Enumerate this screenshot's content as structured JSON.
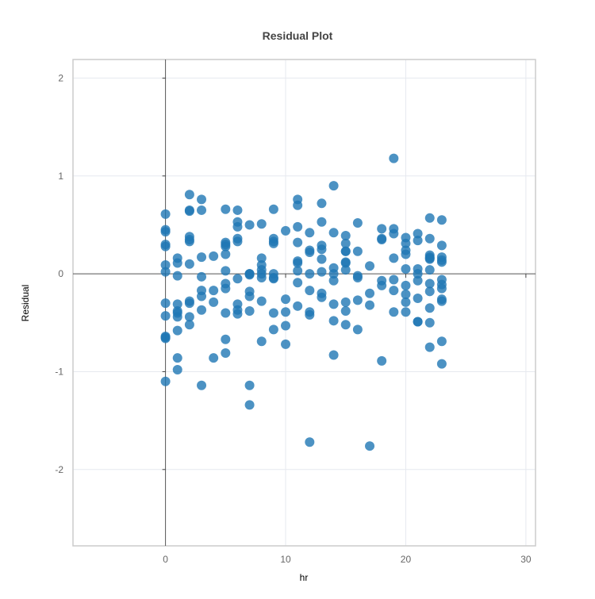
{
  "chart_data": {
    "type": "scatter",
    "title": "Residual Plot",
    "xlabel": "hr",
    "ylabel": "Residual",
    "xlim": [
      -7.7,
      30.8
    ],
    "ylim": [
      -2.78,
      2.19
    ],
    "x_ticks": [
      0,
      10,
      20,
      30
    ],
    "x_tick_labels": [
      "0",
      "10",
      "20",
      "30"
    ],
    "y_ticks": [
      -2,
      -1,
      0,
      1,
      2
    ],
    "y_tick_labels": [
      "-2",
      "-1",
      "0",
      "1",
      "2"
    ],
    "grid": true,
    "legend": false,
    "colors": {
      "marker": "#1f77b4",
      "marker_opacity": 0.8,
      "grid": "#e6e9ef",
      "zero_line": "#555555",
      "frame": "#cccccc"
    },
    "series": [
      {
        "x": [
          0,
          0,
          0,
          0,
          0,
          0,
          0,
          0,
          0,
          0,
          0,
          0,
          0,
          1,
          1,
          1,
          1,
          1,
          1,
          1,
          1,
          1,
          1,
          2,
          2,
          2,
          2,
          2,
          2,
          2,
          2,
          2,
          2,
          2,
          3,
          3,
          3,
          3,
          3,
          3,
          3,
          3,
          4,
          4,
          4,
          4,
          5,
          5,
          5,
          5,
          5,
          5,
          5,
          5,
          5,
          5,
          5,
          6,
          6,
          6,
          6,
          6,
          6,
          6,
          6,
          6,
          7,
          7,
          7,
          7,
          7,
          7,
          7,
          7,
          7,
          8,
          8,
          8,
          8,
          8,
          8,
          8,
          8,
          9,
          9,
          9,
          9,
          9,
          9,
          9,
          9,
          9,
          10,
          10,
          10,
          10,
          10,
          11,
          11,
          11,
          11,
          11,
          11,
          11,
          11,
          11,
          12,
          12,
          12,
          12,
          12,
          12,
          12,
          12,
          13,
          13,
          13,
          13,
          13,
          13,
          13,
          13,
          14,
          14,
          14,
          14,
          14,
          14,
          14,
          14,
          15,
          15,
          15,
          15,
          15,
          15,
          15,
          15,
          15,
          15,
          16,
          16,
          16,
          16,
          16,
          16,
          17,
          17,
          17,
          17,
          18,
          18,
          18,
          18,
          18,
          18,
          19,
          19,
          19,
          19,
          19,
          19,
          19,
          20,
          20,
          20,
          20,
          20,
          20,
          20,
          20,
          20,
          21,
          21,
          21,
          21,
          21,
          21,
          21,
          21,
          22,
          22,
          22,
          22,
          22,
          22,
          22,
          22,
          22,
          22,
          22,
          22,
          23,
          23,
          23,
          23,
          23,
          23,
          23,
          23,
          23,
          23,
          23,
          23
        ],
        "y": [
          0.61,
          0.45,
          0.43,
          0.3,
          0.28,
          0.09,
          0.02,
          -0.3,
          -0.43,
          -0.65,
          -0.66,
          -1.1,
          -0.64,
          0.16,
          0.11,
          -0.02,
          -0.31,
          -0.38,
          -0.44,
          -0.58,
          -0.86,
          -0.98,
          -0.4,
          0.81,
          0.65,
          0.64,
          0.38,
          0.35,
          0.33,
          0.1,
          -0.28,
          -0.3,
          -0.44,
          -0.52,
          0.76,
          0.65,
          0.17,
          -0.03,
          -0.17,
          -0.23,
          -0.37,
          -1.14,
          0.18,
          -0.17,
          -0.29,
          -0.86,
          0.66,
          0.32,
          0.28,
          0.2,
          0.03,
          -0.1,
          -0.15,
          -0.4,
          -0.67,
          -0.81,
          0.3,
          0.65,
          0.53,
          0.48,
          0.36,
          0.33,
          -0.31,
          -0.37,
          -0.41,
          -0.05,
          0.5,
          0.0,
          0.0,
          -0.01,
          -0.18,
          -0.23,
          -0.38,
          -1.14,
          -1.34,
          0.51,
          0.16,
          0.09,
          0.04,
          0.0,
          -0.04,
          -0.28,
          -0.69,
          0.66,
          0.36,
          0.33,
          0.31,
          0.0,
          -0.05,
          -0.4,
          -0.57,
          -0.04,
          0.44,
          -0.26,
          -0.39,
          -0.53,
          -0.72,
          0.76,
          0.7,
          0.48,
          0.32,
          0.13,
          0.11,
          0.03,
          -0.09,
          -0.33,
          0.42,
          0.24,
          0.22,
          0.0,
          -0.17,
          -0.39,
          -0.42,
          -1.72,
          0.72,
          0.53,
          0.29,
          0.15,
          0.02,
          -0.2,
          -0.24,
          0.25,
          0.9,
          0.42,
          0.06,
          0.0,
          -0.07,
          -0.31,
          -0.48,
          -0.83,
          0.39,
          0.31,
          0.23,
          0.23,
          0.12,
          0.11,
          0.04,
          -0.29,
          -0.38,
          -0.52,
          0.52,
          0.23,
          -0.02,
          -0.04,
          -0.27,
          -0.57,
          0.08,
          -0.2,
          -0.32,
          -1.76,
          0.46,
          0.36,
          0.35,
          -0.07,
          -0.12,
          -0.89,
          1.18,
          0.46,
          0.41,
          0.16,
          -0.06,
          -0.17,
          -0.39,
          0.37,
          0.31,
          0.24,
          0.2,
          0.05,
          -0.12,
          -0.21,
          -0.29,
          -0.39,
          0.41,
          0.34,
          0.05,
          0.0,
          -0.07,
          -0.25,
          -0.49,
          -0.49,
          0.57,
          0.36,
          0.19,
          0.17,
          0.16,
          0.15,
          0.04,
          -0.1,
          -0.18,
          -0.35,
          -0.5,
          -0.75,
          0.55,
          0.29,
          0.17,
          0.14,
          0.12,
          -0.06,
          -0.11,
          -0.15,
          -0.26,
          -0.28,
          -0.69,
          -0.92
        ]
      }
    ]
  }
}
